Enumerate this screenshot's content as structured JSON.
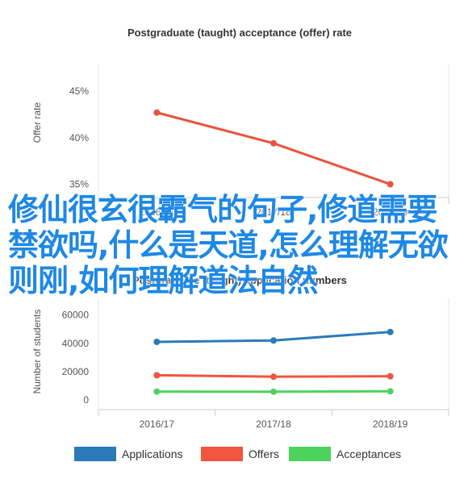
{
  "chart_data": [
    {
      "type": "line",
      "title": "Postgraduate (taught) acceptance (offer) rate",
      "xlabel": "",
      "ylabel": "Offer rate",
      "categories": [
        "2016/17",
        "2017/18",
        "2018/19"
      ],
      "yticks": [
        "35%",
        "40%",
        "45%"
      ],
      "ylim": [
        34,
        47
      ],
      "series": [
        {
          "values": [
            42.7,
            39.4,
            35.0
          ],
          "color": "#e8533b"
        }
      ]
    },
    {
      "type": "line",
      "title": "Postgraduate (taught) application numbers",
      "xlabel": "",
      "ylabel": "Number of students",
      "categories": [
        "2016/17",
        "2017/18",
        "2018/19"
      ],
      "yticks": [
        "0",
        "20000",
        "40000",
        "60000"
      ],
      "ylim": [
        -5000,
        66000
      ],
      "legend_position": "bottom",
      "series": [
        {
          "name": "Applications",
          "values": [
            41000,
            42000,
            48000
          ],
          "color": "#2a7ab8"
        },
        {
          "name": "Offers",
          "values": [
            17500,
            16500,
            16800
          ],
          "color": "#f0553d"
        },
        {
          "name": "Acceptances",
          "values": [
            6000,
            5900,
            6200
          ],
          "color": "#4cd35c"
        }
      ]
    }
  ],
  "overlay_text": "修仙很玄很霸气的句子,修道需要禁欲吗,什么是天道,怎么理解无欲则刚,如何理解道法自然"
}
